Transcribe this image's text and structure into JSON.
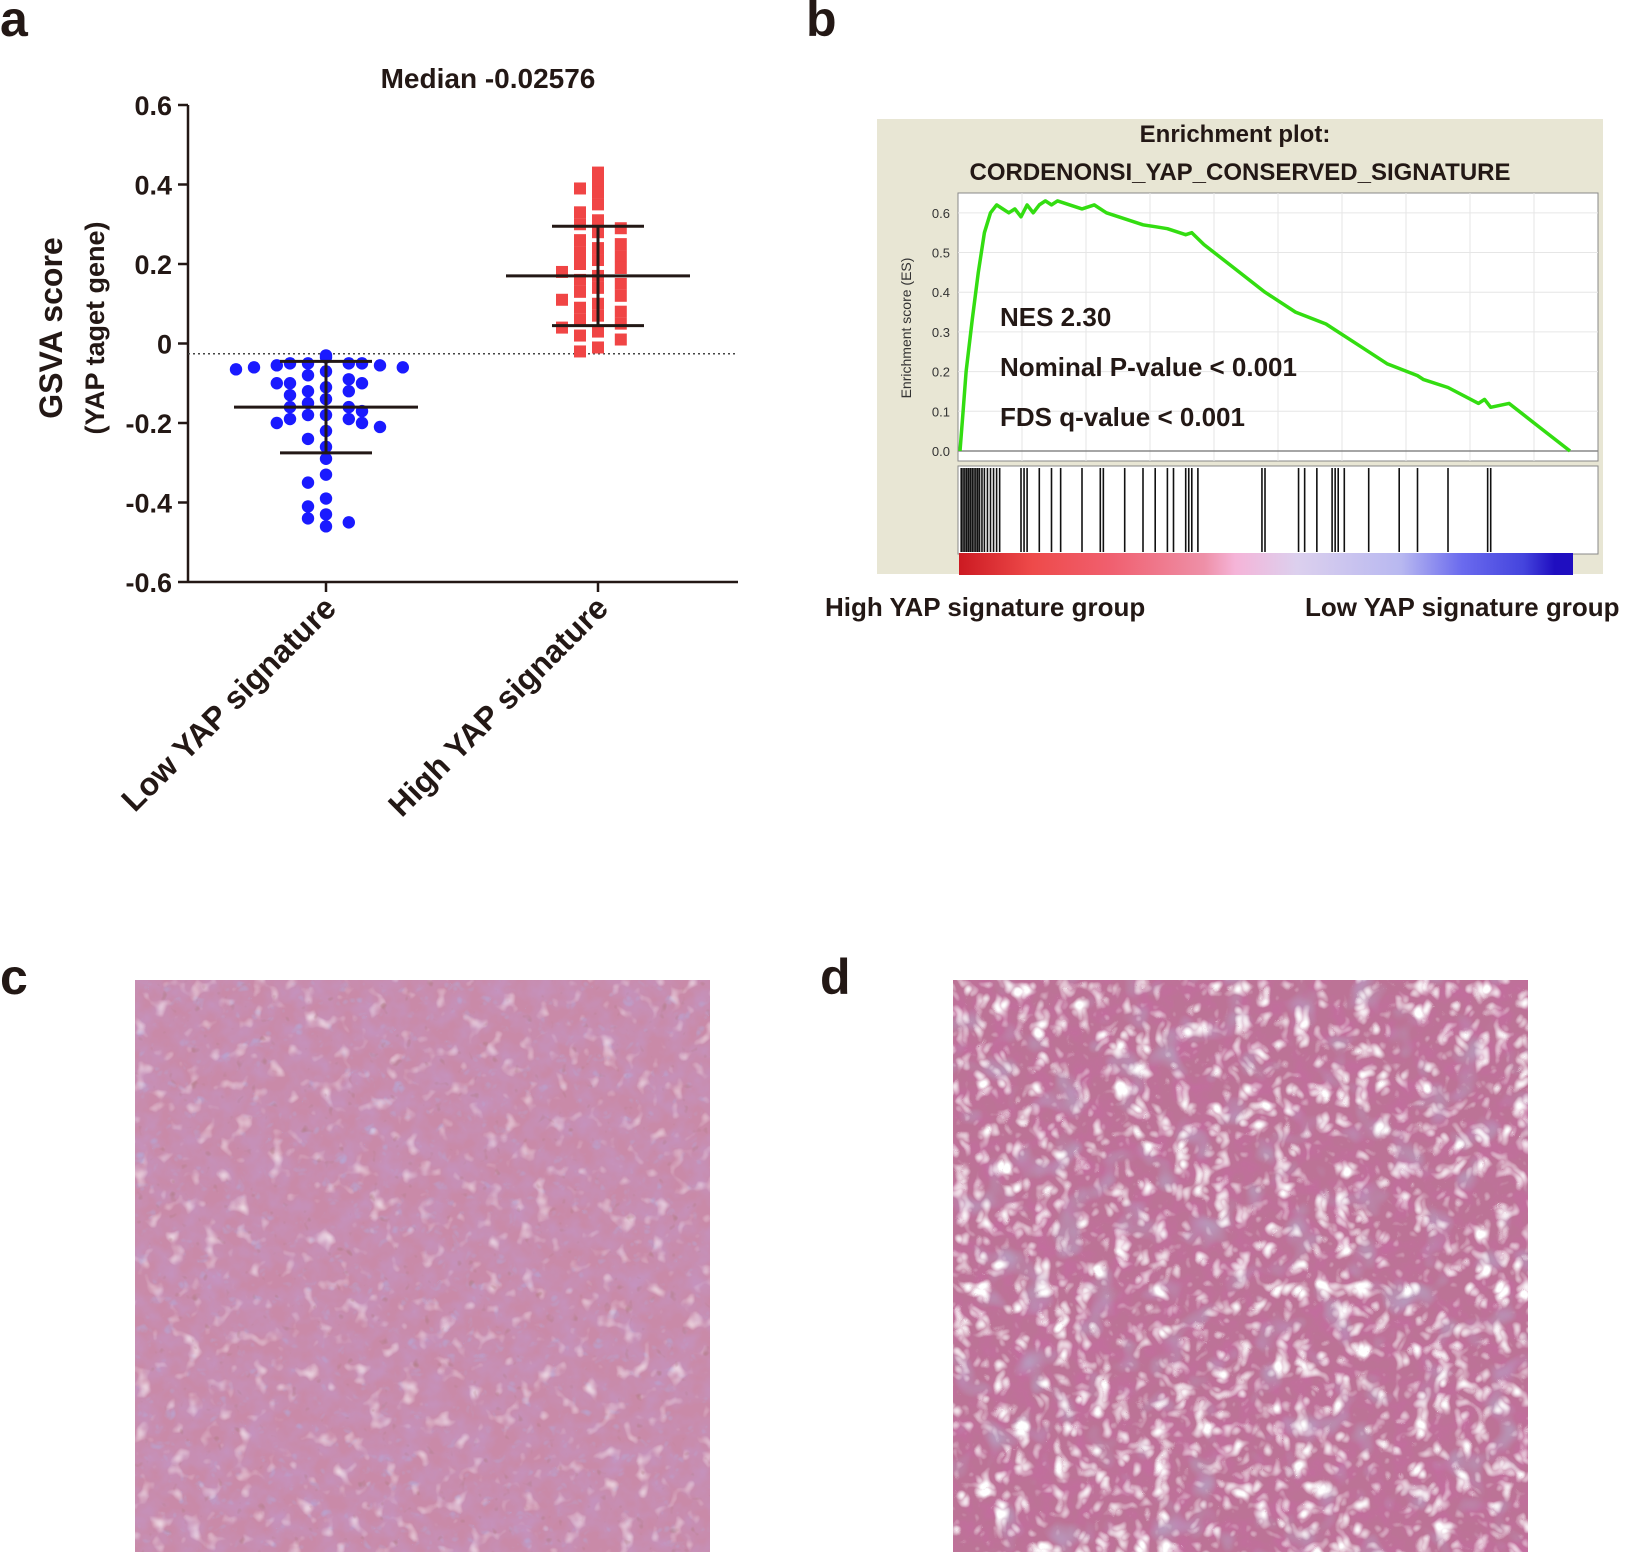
{
  "panels": {
    "a": {
      "letter": "a"
    },
    "b": {
      "letter": "b"
    },
    "c": {
      "letter": "c"
    },
    "d": {
      "letter": "d"
    }
  },
  "chart_data": [
    {
      "type": "scatter",
      "title": "Median -0.02576",
      "ylabel": "GSVA score",
      "ylabel_sub": "(YAP taget gene)",
      "ylim": [
        -0.6,
        0.6
      ],
      "yticks": [
        "0.6",
        "0.4",
        "0.2",
        "0",
        "-0.2",
        "-0.4",
        "-0.6"
      ],
      "ytick_values": [
        0.6,
        0.4,
        0.2,
        0,
        -0.2,
        -0.4,
        -0.6
      ],
      "reference_line": -0.02576,
      "categories": [
        "Low YAP signature",
        "High YAP signature"
      ],
      "series": [
        {
          "category": "Low YAP signature",
          "marker": "circle",
          "color": "#1a1aff",
          "mean": -0.16,
          "sd_upper": -0.045,
          "sd_lower": -0.275,
          "values": [
            -0.035,
            -0.03,
            -0.05,
            -0.05,
            -0.05,
            -0.05,
            -0.055,
            -0.055,
            -0.06,
            -0.06,
            -0.065,
            -0.07,
            -0.08,
            -0.09,
            -0.1,
            -0.1,
            -0.1,
            -0.11,
            -0.12,
            -0.12,
            -0.13,
            -0.14,
            -0.15,
            -0.16,
            -0.16,
            -0.17,
            -0.18,
            -0.18,
            -0.19,
            -0.19,
            -0.2,
            -0.2,
            -0.21,
            -0.22,
            -0.24,
            -0.26,
            -0.29,
            -0.33,
            -0.35,
            -0.39,
            -0.41,
            -0.43,
            -0.44,
            -0.45,
            -0.46
          ]
        },
        {
          "category": "High YAP signature",
          "marker": "square",
          "color": "#f04545",
          "mean": 0.17,
          "sd_upper": 0.295,
          "sd_lower": 0.045,
          "values": [
            0.43,
            0.4,
            0.39,
            0.38,
            0.35,
            0.33,
            0.31,
            0.3,
            0.29,
            0.28,
            0.26,
            0.25,
            0.24,
            0.23,
            0.22,
            0.21,
            0.2,
            0.19,
            0.18,
            0.17,
            0.16,
            0.15,
            0.14,
            0.13,
            0.12,
            0.11,
            0.1,
            0.09,
            0.08,
            0.07,
            0.06,
            0.05,
            0.04,
            0.03,
            0.02,
            0.01,
            -0.01,
            -0.02
          ]
        }
      ]
    },
    {
      "type": "line",
      "title_line1": "Enrichment plot:",
      "title_line2": "CORDENONSI_YAP_CONSERVED_SIGNATURE",
      "ylabel": "Enrichment score (ES)",
      "ylim": [
        0,
        0.65
      ],
      "yticks": [
        "0.6",
        "0.5",
        "0.4",
        "0.3",
        "0.2",
        "0.1",
        "0.0"
      ],
      "ytick_values": [
        0.6,
        0.5,
        0.4,
        0.3,
        0.2,
        0.1,
        0.0
      ],
      "line_color": "#33dd11",
      "x": [
        0,
        0.005,
        0.01,
        0.02,
        0.03,
        0.04,
        0.05,
        0.06,
        0.07,
        0.08,
        0.09,
        0.1,
        0.11,
        0.12,
        0.13,
        0.14,
        0.15,
        0.16,
        0.18,
        0.2,
        0.22,
        0.24,
        0.26,
        0.28,
        0.3,
        0.32,
        0.34,
        0.36,
        0.37,
        0.38,
        0.4,
        0.45,
        0.5,
        0.55,
        0.6,
        0.61,
        0.65,
        0.7,
        0.75,
        0.76,
        0.8,
        0.85,
        0.86,
        0.87,
        0.9,
        0.95,
        1.0
      ],
      "y": [
        0.0,
        0.1,
        0.2,
        0.33,
        0.45,
        0.55,
        0.6,
        0.62,
        0.61,
        0.6,
        0.61,
        0.59,
        0.62,
        0.6,
        0.62,
        0.63,
        0.62,
        0.63,
        0.62,
        0.61,
        0.62,
        0.6,
        0.59,
        0.58,
        0.57,
        0.565,
        0.56,
        0.55,
        0.545,
        0.55,
        0.52,
        0.46,
        0.4,
        0.35,
        0.32,
        0.31,
        0.27,
        0.22,
        0.19,
        0.18,
        0.16,
        0.12,
        0.13,
        0.11,
        0.12,
        0.06,
        0.0
      ],
      "hit_positions": [
        0.002,
        0.005,
        0.008,
        0.011,
        0.014,
        0.017,
        0.02,
        0.023,
        0.026,
        0.029,
        0.032,
        0.036,
        0.04,
        0.045,
        0.05,
        0.055,
        0.06,
        0.065,
        0.1,
        0.105,
        0.11,
        0.13,
        0.15,
        0.165,
        0.2,
        0.23,
        0.235,
        0.27,
        0.3,
        0.32,
        0.34,
        0.35,
        0.37,
        0.375,
        0.38,
        0.39,
        0.495,
        0.5,
        0.555,
        0.565,
        0.585,
        0.61,
        0.615,
        0.62,
        0.63,
        0.67,
        0.72,
        0.75,
        0.8,
        0.865,
        0.87
      ],
      "annotations": [
        "NES 2.30",
        "Nominal P-value < 0.001",
        "FDS q-value < 0.001"
      ],
      "left_group_label": "High YAP signature group",
      "right_group_label": "Low YAP signature group"
    }
  ]
}
